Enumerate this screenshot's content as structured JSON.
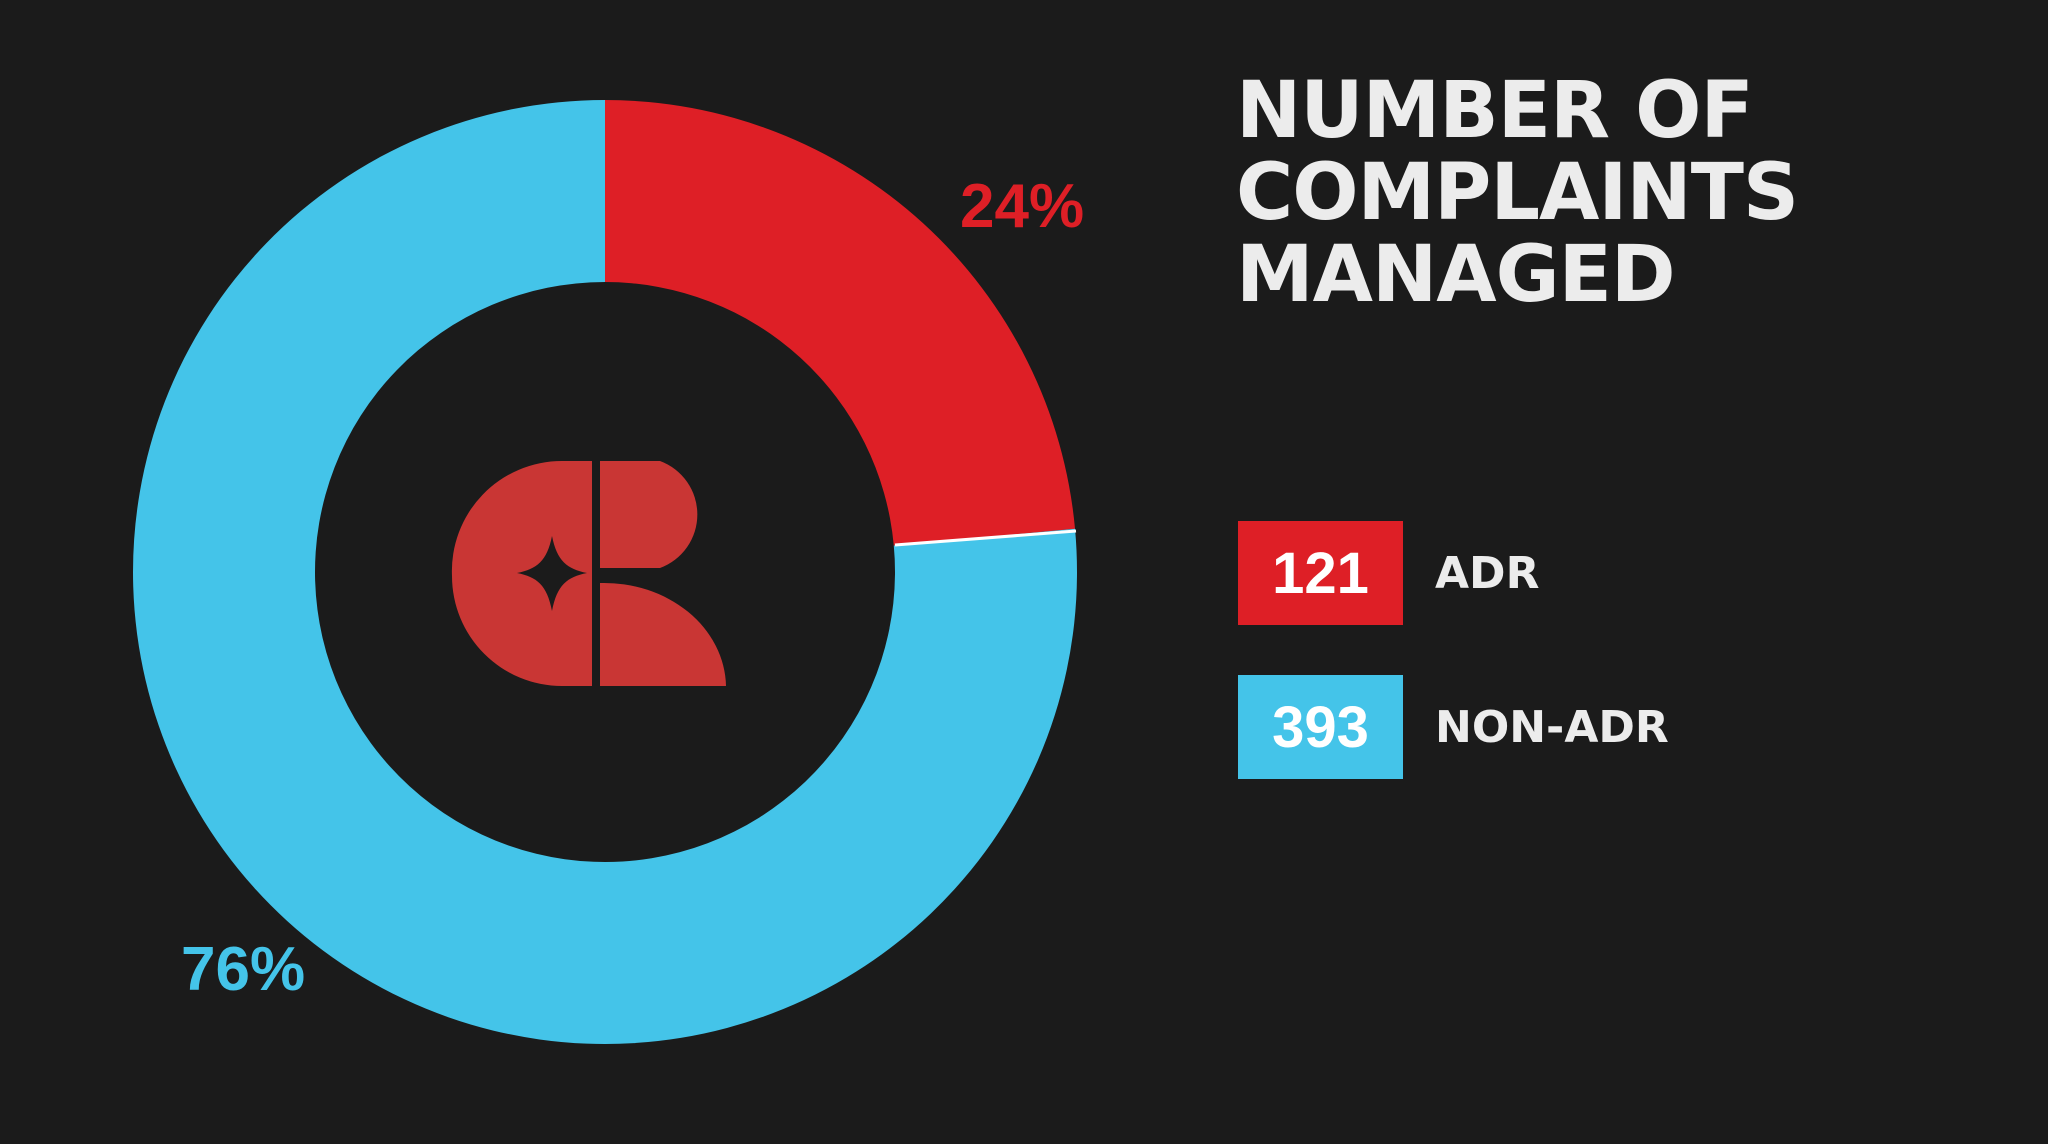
{
  "title_lines": [
    "NUMBER OF",
    "COMPLAINTS",
    "MANAGED"
  ],
  "colors": {
    "background": "#1b1b1b",
    "adr": "#de1f26",
    "non_adr": "#44c4e9",
    "logo": "#c93634",
    "title": "#ececec"
  },
  "logo": {
    "name": "cr-monogram-logo",
    "text": "CR"
  },
  "chart_data": {
    "type": "pie",
    "style": "donut",
    "title": "NUMBER OF COMPLAINTS MANAGED",
    "legend_position": "right",
    "slices": [
      {
        "label": "ADR",
        "value": 121,
        "percent_label": "24%",
        "color": "#de1f26"
      },
      {
        "label": "NON-ADR",
        "value": 393,
        "percent_label": "76%",
        "color": "#44c4e9"
      }
    ]
  }
}
